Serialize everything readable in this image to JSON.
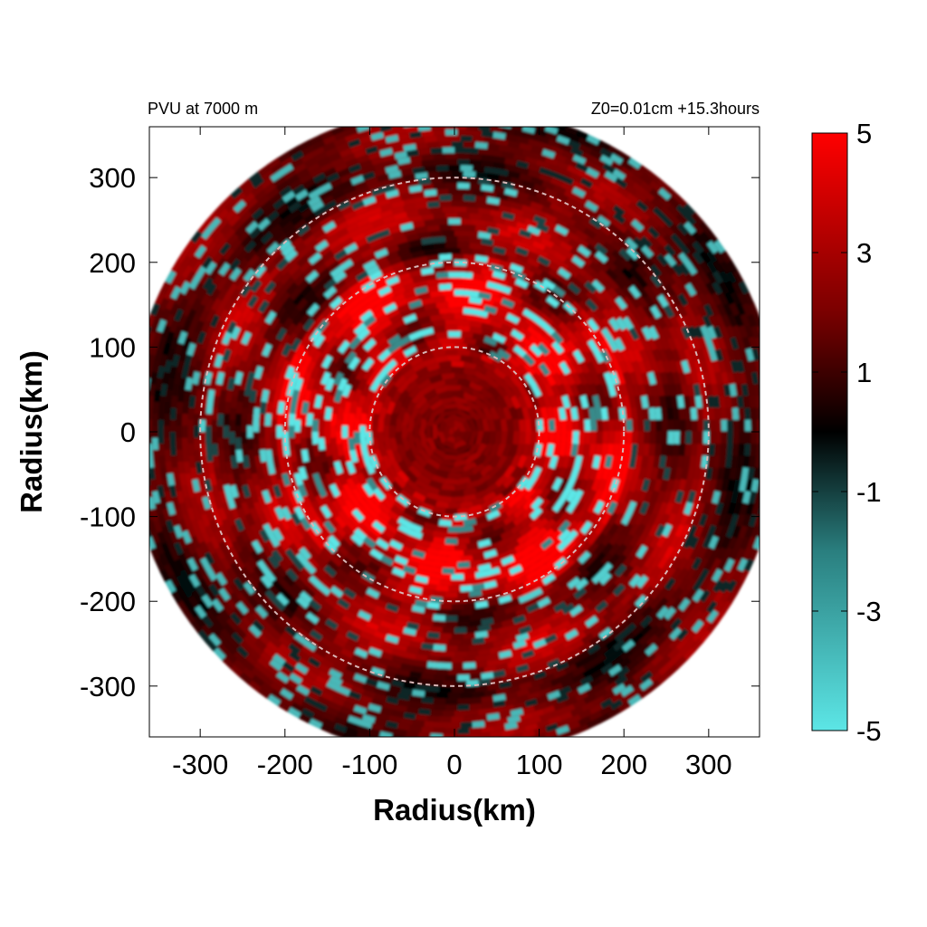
{
  "chart_data": {
    "type": "heatmap",
    "title_left": "PVU at  7000 m",
    "title_right": "Z0=0.01cm  +15.3hours",
    "xlabel": "Radius(km)",
    "ylabel": "Radius(km)",
    "xlim": [
      -360,
      360
    ],
    "ylim": [
      -360,
      360
    ],
    "x_ticks": [
      -300,
      -200,
      -100,
      0,
      100,
      200,
      300
    ],
    "y_ticks": [
      300,
      200,
      100,
      0,
      -100,
      -200,
      -300
    ],
    "colorbar": {
      "min": -5,
      "max": 5,
      "ticks": [
        5,
        3,
        1,
        -1,
        -3,
        -5
      ],
      "colors": [
        "#5ce6e6",
        "#000000",
        "#ff0000"
      ]
    },
    "reference_circles_km": [
      100,
      200,
      300
    ],
    "data_domain_radius_km": 380,
    "field_description": "Potential vorticity (PVU): mostly positive (red) values with scattered negative (cyan) bands arranged in concentric rings; weak positive core within ~100 km, strongest positive values in the 50-200 km annulus."
  }
}
